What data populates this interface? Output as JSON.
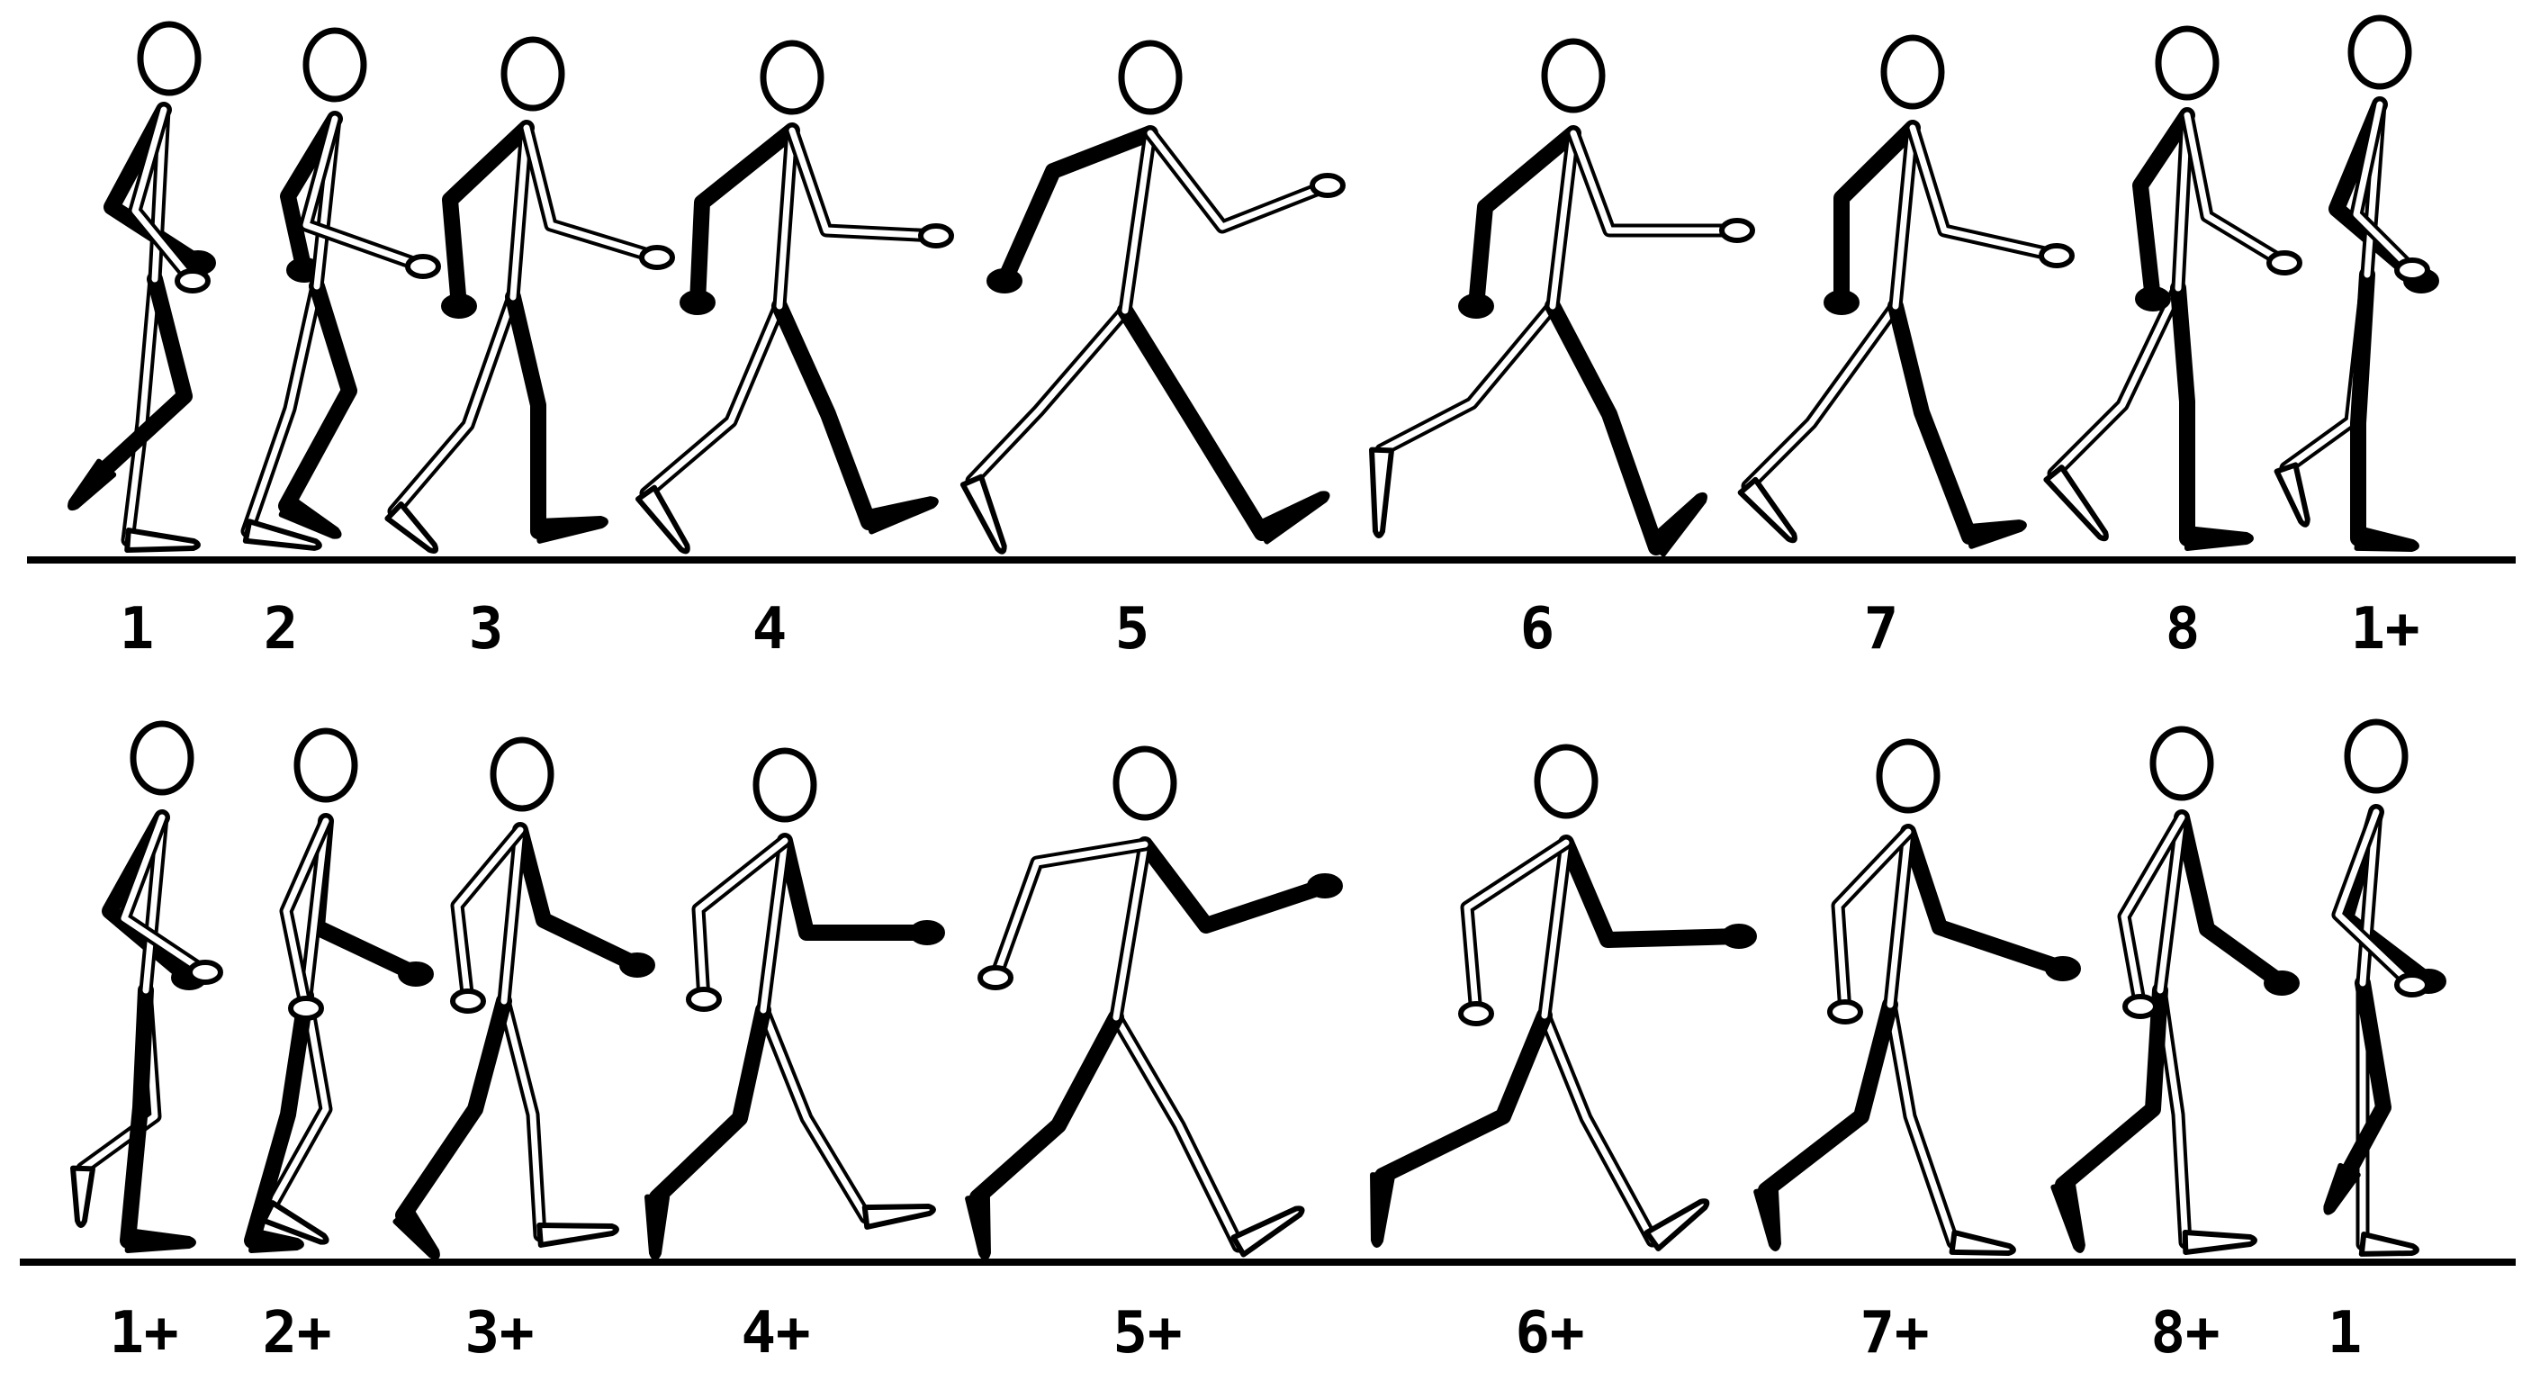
{
  "colors": {
    "ink": "#000000",
    "paper": "#ffffff"
  },
  "rows": [
    {
      "frames": [
        {
          "label": "1"
        },
        {
          "label": "2"
        },
        {
          "label": "3"
        },
        {
          "label": "4"
        },
        {
          "label": "5"
        },
        {
          "label": "6"
        },
        {
          "label": "7"
        },
        {
          "label": "8"
        },
        {
          "label": "1+"
        }
      ]
    },
    {
      "frames": [
        {
          "label": "1+"
        },
        {
          "label": "2+"
        },
        {
          "label": "3+"
        },
        {
          "label": "4+"
        },
        {
          "label": "5+"
        },
        {
          "label": "6+"
        },
        {
          "label": "7+"
        },
        {
          "label": "8+"
        },
        {
          "label": "1"
        }
      ]
    }
  ]
}
